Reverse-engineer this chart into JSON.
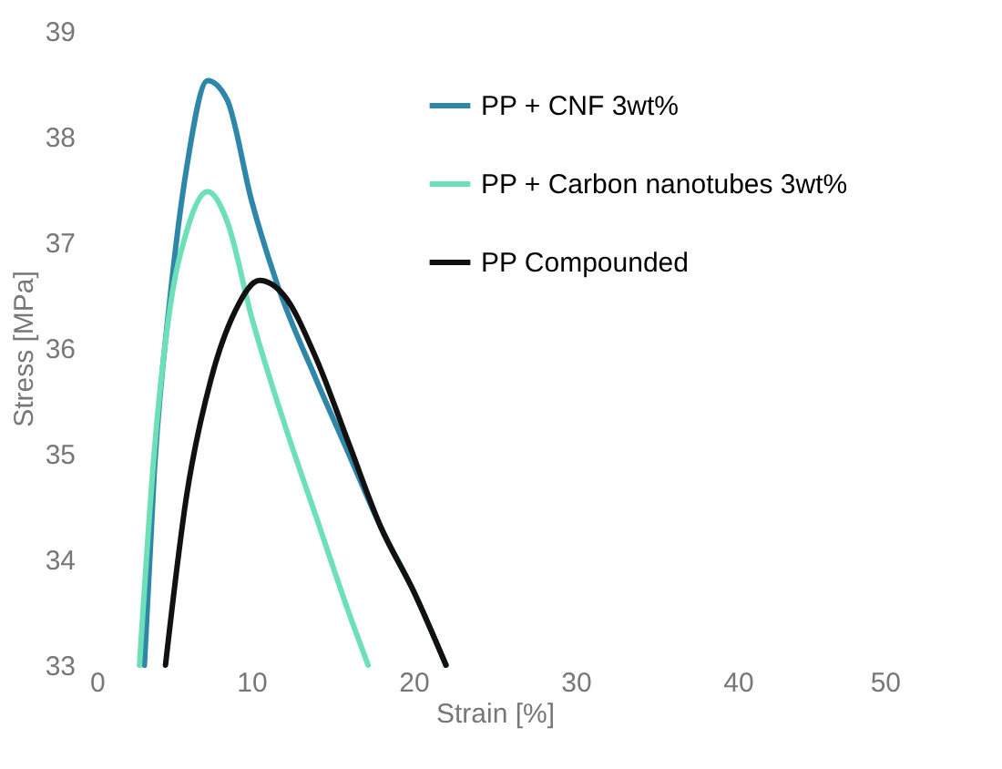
{
  "chart_data": {
    "type": "line",
    "xlabel": "Strain [%]",
    "ylabel": "Stress [MPa]",
    "xlim": [
      0,
      50
    ],
    "ylim": [
      33,
      39
    ],
    "xticks": [
      0,
      10,
      20,
      30,
      40,
      50
    ],
    "yticks": [
      33,
      34,
      35,
      36,
      37,
      38,
      39
    ],
    "legend": "top right",
    "grid": false,
    "marker": "none",
    "line_style": "solid",
    "series": [
      {
        "name": "PP + CNF 3wt%",
        "color": "#2e86a8",
        "x": [
          3.4,
          4,
          5,
          6,
          7.3,
          8.5,
          10,
          11.6,
          14,
          16,
          18,
          20,
          22
        ],
        "values": [
          33,
          34.8,
          36.5,
          37.7,
          38.53,
          38.35,
          37.4,
          36.6,
          35.7,
          35.0,
          34.3,
          33.7,
          33
        ]
      },
      {
        "name": "PP + Carbon nanotubes 3wt%",
        "color": "#6ee0b8",
        "x": [
          3.1,
          4,
          5,
          6,
          7.3,
          8.5,
          10,
          12,
          14,
          16,
          17.2
        ],
        "values": [
          33,
          35,
          36.4,
          37.1,
          37.48,
          37.2,
          36.3,
          35.3,
          34.4,
          33.5,
          33
        ]
      },
      {
        "name": "PP Compounded",
        "color": "#111111",
        "x": [
          4.7,
          6,
          7.5,
          9,
          10.5,
          12,
          14,
          16,
          18,
          20,
          22
        ],
        "values": [
          33,
          34.6,
          35.7,
          36.35,
          36.64,
          36.5,
          35.9,
          35.1,
          34.3,
          33.7,
          33
        ]
      }
    ]
  }
}
